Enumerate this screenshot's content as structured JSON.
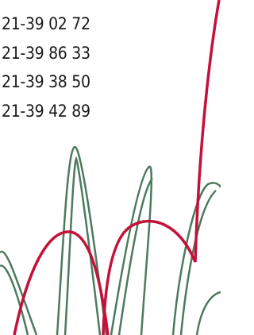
{
  "phone_numbers": [
    "21-39 02 72",
    "21-39 86 33",
    "21-39 38 50",
    "21-39 42 89"
  ]
}
